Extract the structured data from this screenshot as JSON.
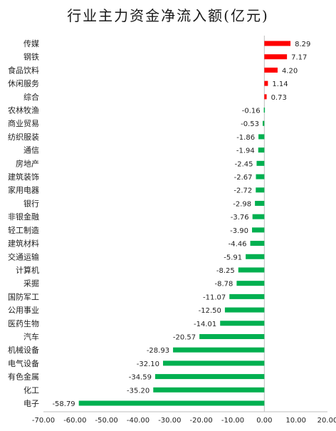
{
  "chart_data": {
    "type": "bar",
    "orientation": "horizontal",
    "title": "行业主力资金净流入额(亿元)",
    "categories": [
      "传媒",
      "钢铁",
      "食品饮料",
      "休闲服务",
      "综合",
      "农林牧渔",
      "商业贸易",
      "纺织服装",
      "通信",
      "房地产",
      "建筑装饰",
      "家用电器",
      "银行",
      "非银金融",
      "轻工制造",
      "建筑材料",
      "交通运输",
      "计算机",
      "采掘",
      "国防军工",
      "公用事业",
      "医药生物",
      "汽车",
      "机械设备",
      "电气设备",
      "有色金属",
      "化工",
      "电子"
    ],
    "values": [
      8.29,
      7.17,
      4.2,
      1.14,
      0.73,
      -0.16,
      -0.53,
      -1.86,
      -1.94,
      -2.45,
      -2.67,
      -2.72,
      -2.98,
      -3.76,
      -3.9,
      -4.46,
      -5.91,
      -8.25,
      -8.78,
      -11.07,
      -12.5,
      -14.01,
      -20.57,
      -28.93,
      -32.1,
      -34.59,
      -35.2,
      -58.79
    ],
    "value_labels": [
      "8.29",
      "7.17",
      "4.20",
      "1.14",
      "0.73",
      "-0.16",
      "-0.53",
      "-1.86",
      "-1.94",
      "-2.45",
      "-2.67",
      "-2.72",
      "-2.98",
      "-3.76",
      "-3.90",
      "-4.46",
      "-5.91",
      "-8.25",
      "-8.78",
      "-11.07",
      "-12.50",
      "-14.01",
      "-20.57",
      "-28.93",
      "-32.10",
      "-34.59",
      "-35.20",
      "-58.79"
    ],
    "xlim": [
      -70,
      20
    ],
    "x_ticks": [
      -70,
      -60,
      -50,
      -40,
      -30,
      -20,
      -10,
      0,
      10,
      20
    ],
    "x_tick_labels": [
      "-70.00",
      "-60.00",
      "-50.00",
      "-40.00",
      "-30.00",
      "-20.00",
      "-10.00",
      "0.00",
      "10.00",
      "20.00"
    ],
    "xlabel": "",
    "ylabel": "",
    "grid": false,
    "legend": "none",
    "colors": {
      "positive": "#ff0000",
      "negative": "#00b050",
      "axis": "#bfbfbf"
    }
  }
}
